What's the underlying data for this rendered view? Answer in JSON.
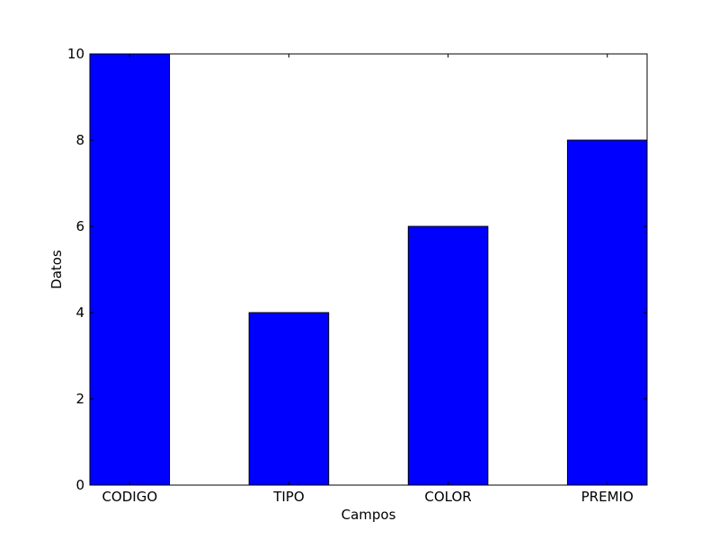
{
  "chart_data": {
    "type": "bar",
    "title": "",
    "xlabel": "Campos",
    "ylabel": "Datos",
    "categories": [
      "CODIGO",
      "TIPO",
      "COLOR",
      "PREMIO"
    ],
    "values": [
      10,
      4,
      6,
      8
    ],
    "ylim": [
      0,
      10
    ],
    "yticks": [
      0,
      2,
      4,
      6,
      8,
      10
    ],
    "ytick_labels": [
      "0",
      "2",
      "4",
      "6",
      "8",
      "10"
    ],
    "grid": false,
    "legend": "none",
    "bar_color": "#0000ff",
    "edge_color": "#000000"
  }
}
